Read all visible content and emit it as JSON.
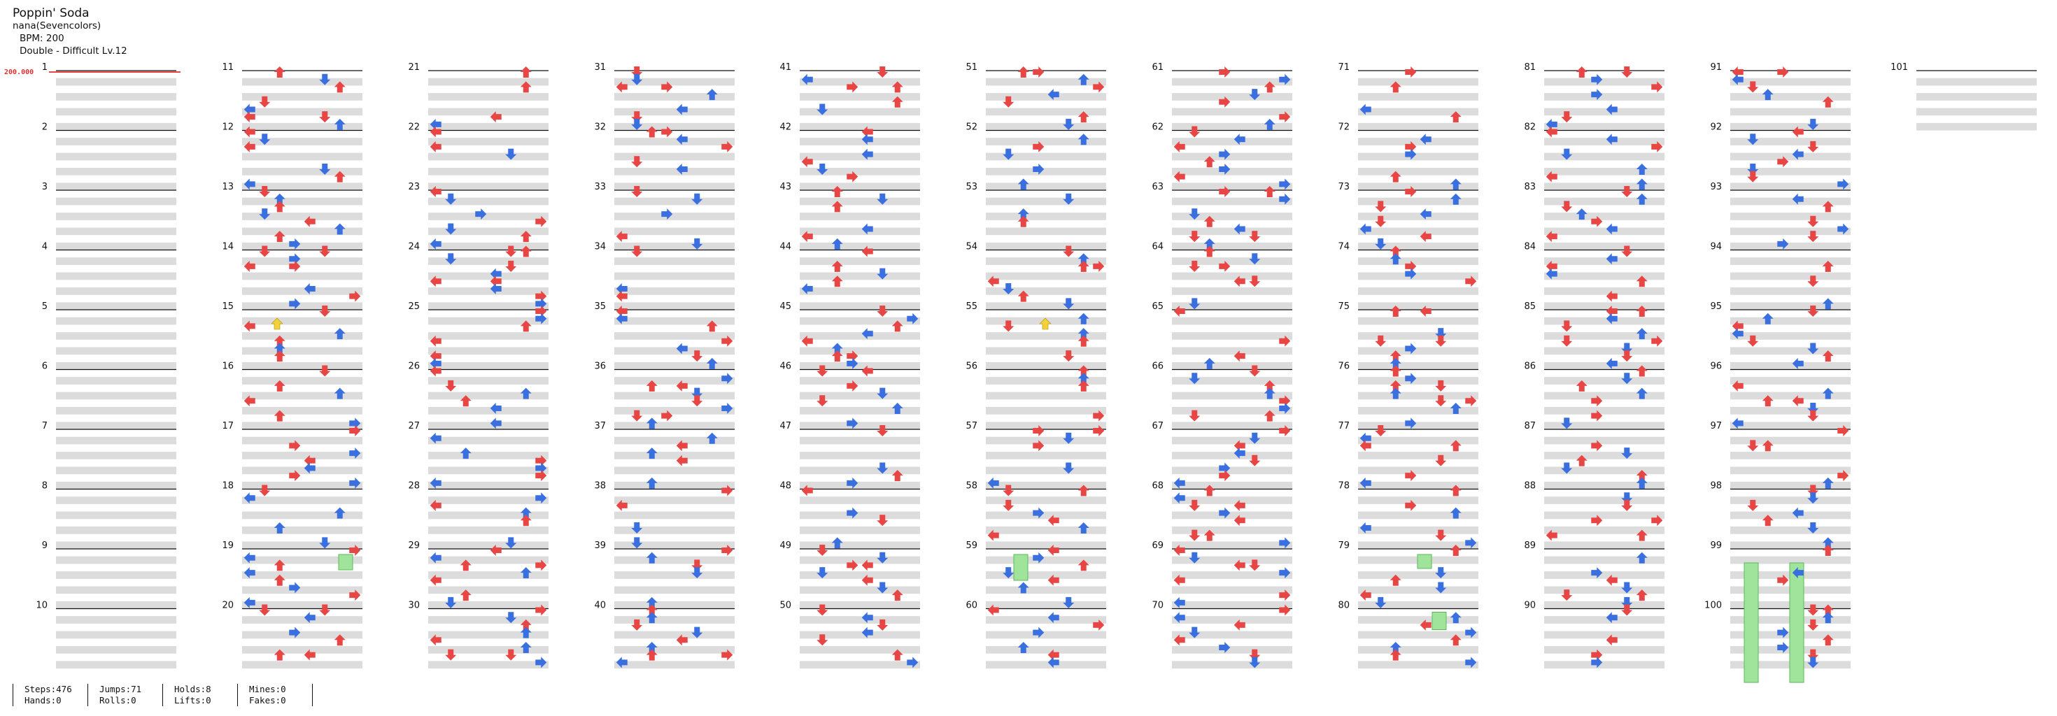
{
  "song": {
    "title": "Poppin' Soda",
    "artist": "nana(Sevencolors)",
    "bpm_label": "BPM: 200",
    "difficulty_label": "Double - Difficult Lv.12"
  },
  "bpm_marker": "200.000",
  "stats": {
    "steps": "Steps:476",
    "hands": "Hands:0",
    "jumps": "Jumps:71",
    "rolls": "Rolls:0",
    "holds": "Holds:8",
    "lifts": "Lifts:0",
    "mines": "Mines:0",
    "fakes": "Fakes:0"
  },
  "colors": {
    "quarter": "#e84545",
    "eighth": "#3a6fe0",
    "sixteenth": "#f2d23a",
    "hold": "#9fe49a",
    "band": "#dcdcdc",
    "measure_line": "#111111"
  },
  "measures": [
    1,
    2,
    3,
    4,
    5,
    6,
    7,
    8,
    9,
    10,
    11,
    12,
    13,
    14,
    15,
    16,
    17,
    18,
    19,
    20,
    21,
    22,
    23,
    24,
    25,
    26,
    27,
    28,
    29,
    30,
    31,
    32,
    33,
    34,
    35,
    36,
    37,
    38,
    39,
    40,
    41,
    42,
    43,
    44,
    45,
    46,
    47,
    48,
    49,
    50,
    51,
    52,
    53,
    54,
    55,
    56,
    57,
    58,
    59,
    60,
    61,
    62,
    63,
    64,
    65,
    66,
    67,
    68,
    69,
    70,
    71,
    72,
    73,
    74,
    75,
    76,
    77,
    78,
    79,
    80,
    81,
    82,
    83,
    84,
    85,
    86,
    87,
    88,
    89,
    90,
    91,
    92,
    93,
    94,
    95,
    96,
    97,
    98,
    99,
    100,
    101
  ]
}
